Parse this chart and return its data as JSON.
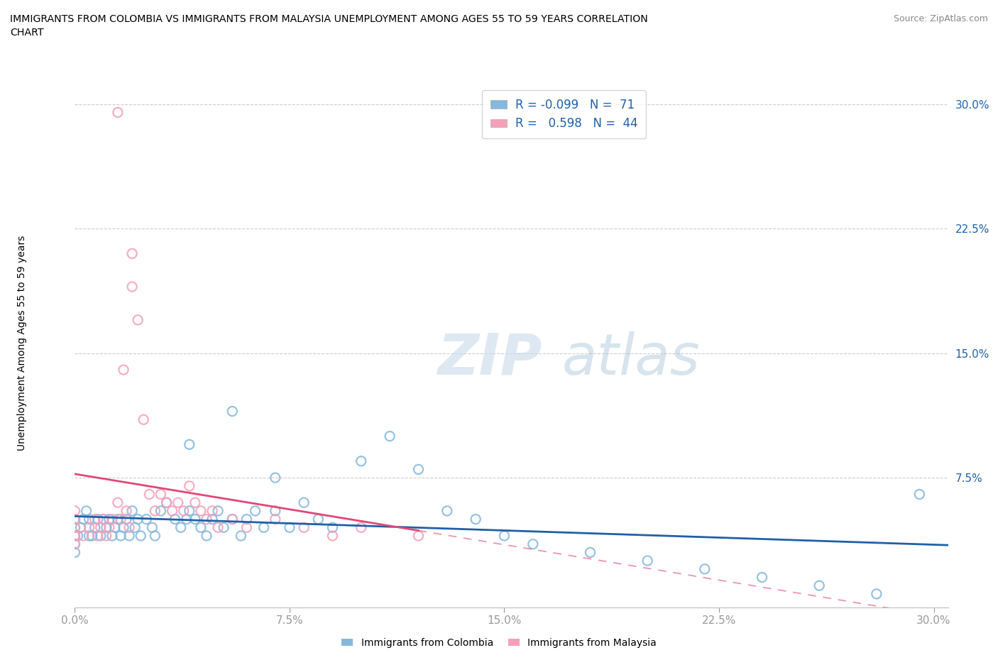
{
  "title_line1": "IMMIGRANTS FROM COLOMBIA VS IMMIGRANTS FROM MALAYSIA UNEMPLOYMENT AMONG AGES 55 TO 59 YEARS CORRELATION",
  "title_line2": "CHART",
  "source": "Source: ZipAtlas.com",
  "ylabel": "Unemployment Among Ages 55 to 59 years",
  "xlim": [
    0.0,
    0.305
  ],
  "ylim": [
    -0.003,
    0.315
  ],
  "colombia_color": "#85b8df",
  "malaysia_color": "#f5a0b8",
  "trend_colombia_color": "#2060a8",
  "trend_malaysia_color": "#e04878",
  "r_colombia": "-0.099",
  "n_colombia": "71",
  "r_malaysia": "0.598",
  "n_malaysia": "44",
  "colombia_x": [
    0.0,
    0.0,
    0.0,
    0.0,
    0.0,
    0.001,
    0.002,
    0.003,
    0.004,
    0.005,
    0.005,
    0.006,
    0.007,
    0.008,
    0.009,
    0.01,
    0.011,
    0.012,
    0.013,
    0.014,
    0.015,
    0.016,
    0.017,
    0.018,
    0.019,
    0.02,
    0.021,
    0.022,
    0.023,
    0.025,
    0.027,
    0.028,
    0.03,
    0.032,
    0.035,
    0.037,
    0.039,
    0.04,
    0.042,
    0.044,
    0.046,
    0.048,
    0.05,
    0.052,
    0.055,
    0.058,
    0.06,
    0.063,
    0.066,
    0.07,
    0.075,
    0.08,
    0.085,
    0.09,
    0.1,
    0.11,
    0.12,
    0.13,
    0.14,
    0.15,
    0.16,
    0.18,
    0.2,
    0.22,
    0.24,
    0.26,
    0.28,
    0.295,
    0.04,
    0.055,
    0.07
  ],
  "colombia_y": [
    0.03,
    0.035,
    0.04,
    0.045,
    0.05,
    0.04,
    0.045,
    0.05,
    0.055,
    0.04,
    0.05,
    0.04,
    0.045,
    0.05,
    0.04,
    0.05,
    0.045,
    0.05,
    0.04,
    0.045,
    0.05,
    0.04,
    0.045,
    0.05,
    0.04,
    0.055,
    0.045,
    0.05,
    0.04,
    0.05,
    0.045,
    0.04,
    0.055,
    0.06,
    0.05,
    0.045,
    0.05,
    0.055,
    0.05,
    0.045,
    0.04,
    0.05,
    0.055,
    0.045,
    0.05,
    0.04,
    0.05,
    0.055,
    0.045,
    0.055,
    0.045,
    0.06,
    0.05,
    0.045,
    0.085,
    0.1,
    0.08,
    0.055,
    0.05,
    0.04,
    0.035,
    0.03,
    0.025,
    0.02,
    0.015,
    0.01,
    0.005,
    0.065,
    0.095,
    0.115,
    0.075
  ],
  "malaysia_x": [
    0.0,
    0.0,
    0.0,
    0.0,
    0.0,
    0.003,
    0.005,
    0.007,
    0.008,
    0.009,
    0.01,
    0.011,
    0.012,
    0.013,
    0.015,
    0.016,
    0.017,
    0.018,
    0.019,
    0.02,
    0.022,
    0.024,
    0.026,
    0.028,
    0.03,
    0.032,
    0.034,
    0.036,
    0.038,
    0.04,
    0.042,
    0.044,
    0.046,
    0.048,
    0.05,
    0.055,
    0.06,
    0.07,
    0.08,
    0.09,
    0.1,
    0.12,
    0.015,
    0.02
  ],
  "malaysia_y": [
    0.04,
    0.045,
    0.05,
    0.055,
    0.035,
    0.04,
    0.045,
    0.05,
    0.04,
    0.045,
    0.05,
    0.04,
    0.045,
    0.05,
    0.06,
    0.05,
    0.14,
    0.055,
    0.045,
    0.19,
    0.17,
    0.11,
    0.065,
    0.055,
    0.065,
    0.06,
    0.055,
    0.06,
    0.055,
    0.07,
    0.06,
    0.055,
    0.05,
    0.055,
    0.045,
    0.05,
    0.045,
    0.05,
    0.045,
    0.04,
    0.045,
    0.04,
    0.295,
    0.21
  ]
}
